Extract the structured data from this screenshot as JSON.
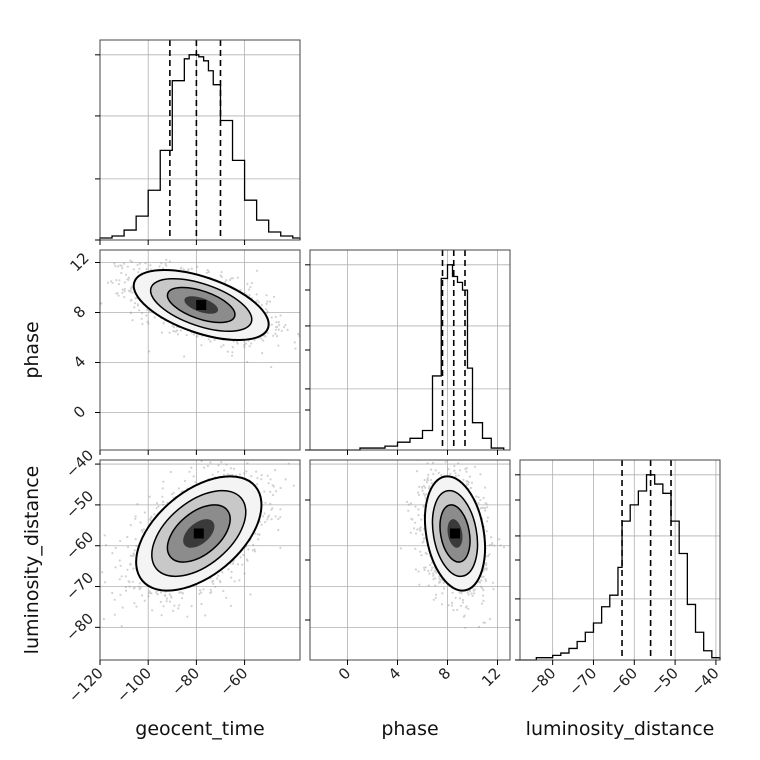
{
  "chart_data": {
    "type": "corner",
    "parameters": [
      "geocent_time",
      "phase",
      "luminosity_distance"
    ],
    "colors": {
      "line": "#000000",
      "grid": "#b0b0b0",
      "points": "#9a9a9a"
    },
    "ranges": {
      "geocent_time": [
        -120,
        -37
      ],
      "phase": [
        -3,
        13
      ],
      "luminosity_distance": [
        -88,
        -39
      ]
    },
    "ticks": {
      "geocent_time": [
        -120,
        -100,
        -80,
        -60
      ],
      "phase": [
        0,
        4,
        8,
        12
      ],
      "luminosity_distance": [
        -80,
        -70,
        -60,
        -50,
        -40
      ]
    },
    "histograms": {
      "geocent_time": {
        "bin_edges": [
          -120,
          -115,
          -110,
          -105,
          -100,
          -95,
          -90,
          -85,
          -83,
          -81,
          -79,
          -77,
          -75,
          -73,
          -70,
          -65,
          -60,
          -55,
          -50,
          -45,
          -40,
          -37
        ],
        "counts": [
          1,
          2,
          5,
          12,
          25,
          45,
          80,
          91,
          93,
          93,
          92,
          90,
          85,
          78,
          60,
          40,
          20,
          10,
          4,
          2,
          1
        ],
        "quantiles": [
          -91,
          -80,
          -70
        ]
      },
      "phase": {
        "bin_edges": [
          -3,
          -1,
          1,
          3,
          4,
          5,
          6,
          6.8,
          7.5,
          8.0,
          8.4,
          8.8,
          9.2,
          9.6,
          10,
          10.8,
          11.5,
          12.5
        ],
        "counts": [
          0,
          0,
          1,
          2,
          4,
          6,
          10,
          38,
          88,
          95,
          89,
          86,
          82,
          42,
          14,
          6,
          1
        ],
        "quantiles": [
          7.6,
          8.5,
          9.4
        ]
      },
      "luminosity_distance": {
        "bin_edges": [
          -88,
          -84,
          -80,
          -78,
          -76,
          -74,
          -72,
          -70,
          -68,
          -66,
          -64,
          -63,
          -61,
          -59,
          -57,
          -55,
          -53,
          -51,
          -49,
          -47,
          -45,
          -43,
          -41,
          -39
        ],
        "counts": [
          0,
          1,
          2,
          3,
          5,
          8,
          12,
          16,
          23,
          28,
          40,
          60,
          67,
          73,
          80,
          76,
          72,
          60,
          46,
          24,
          12,
          4,
          1
        ],
        "quantiles": [
          -63,
          -56,
          -51
        ]
      }
    },
    "scatter_2d": [
      {
        "x": "geocent_time",
        "y": "phase",
        "mean": [
          -78,
          8.6
        ],
        "sd": [
          14,
          1.4
        ],
        "rho": -0.55
      },
      {
        "x": "geocent_time",
        "y": "luminosity_distance",
        "mean": [
          -79,
          -57
        ],
        "sd": [
          13,
          7
        ],
        "rho": 0.5
      },
      {
        "x": "phase",
        "y": "luminosity_distance",
        "mean": [
          8.6,
          -57
        ],
        "sd": [
          1.2,
          7
        ],
        "rho": -0.25
      }
    ],
    "grid": true
  }
}
